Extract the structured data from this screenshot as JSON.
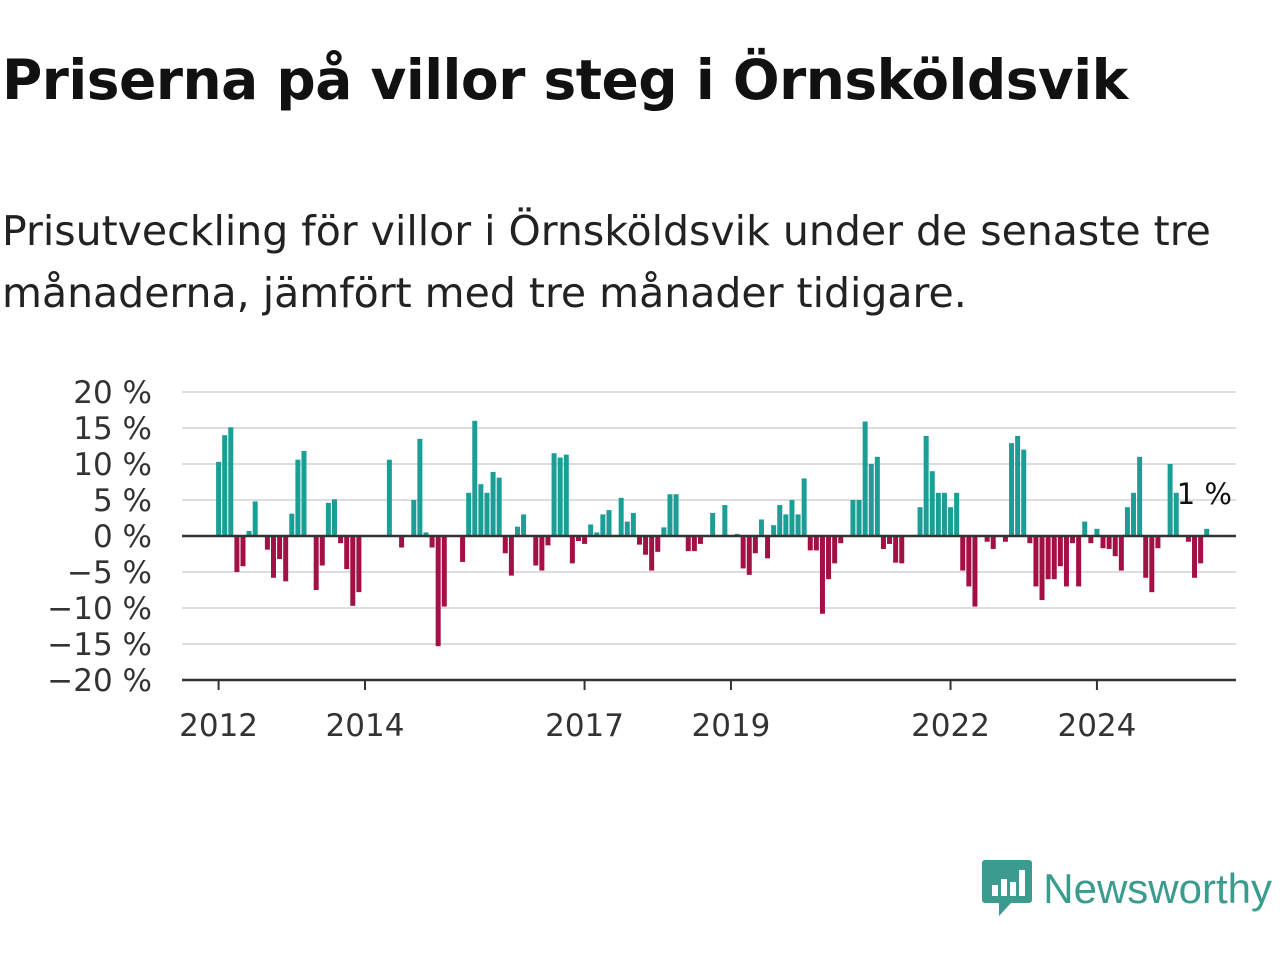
{
  "header": {
    "title": "Priserna på villor steg i Örnsköldsvik",
    "subtitle": "Prisutveckling för villor i Örnsköldsvik under de senaste tre månaderna, jämfört med tre månader tidigare."
  },
  "brand": {
    "name": "Newsworthy",
    "icon": "newsworthy-logo-icon",
    "color": "#3a9b8e"
  },
  "colors": {
    "positive": "#1b9e96",
    "negative": "#a31046",
    "axis": "#333333",
    "grid": "#dddddd"
  },
  "chart_data": {
    "type": "bar",
    "title": "",
    "xlabel": "",
    "ylabel": "",
    "ylim": [
      -20,
      20
    ],
    "y_ticks": [
      20,
      15,
      10,
      5,
      0,
      -5,
      -10,
      -15,
      -20
    ],
    "y_tick_labels": [
      "20 %",
      "15 %",
      "10 %",
      "5 %",
      "0 %",
      "−5 %",
      "−10 %",
      "−15 %",
      "−20 %"
    ],
    "x_tick_labels": [
      {
        "label": "2012",
        "date": "2012-01"
      },
      {
        "label": "2014",
        "date": "2014-01"
      },
      {
        "label": "2017",
        "date": "2017-01"
      },
      {
        "label": "2019",
        "date": "2019-01"
      },
      {
        "label": "2022",
        "date": "2022-01"
      },
      {
        "label": "2024",
        "date": "2024-01"
      }
    ],
    "grid": true,
    "x_start": "2012-01",
    "last_value_label": "1 %",
    "values": [
      10.3,
      14,
      15.1,
      -5,
      -4.2,
      0.7,
      4.8,
      0,
      -1.9,
      -5.8,
      -3.2,
      -6.3,
      3.1,
      10.6,
      11.8,
      0,
      -7.5,
      -4.1,
      4.6,
      5.1,
      -1,
      -4.6,
      -9.7,
      -7.8,
      0,
      0,
      0,
      0,
      10.6,
      0,
      -1.6,
      0,
      5,
      13.5,
      0.5,
      -1.6,
      -15.3,
      -9.8,
      0,
      0,
      -3.6,
      6,
      16,
      7.2,
      6,
      8.9,
      8.1,
      -2.4,
      -5.5,
      1.3,
      3,
      0,
      -4.1,
      -4.8,
      -1.3,
      11.5,
      10.9,
      11.3,
      -3.8,
      -0.7,
      -1.1,
      1.6,
      0.5,
      3,
      3.6,
      0,
      5.3,
      2,
      3.2,
      -1.2,
      -2.6,
      -4.8,
      -2.2,
      1.2,
      5.8,
      5.8,
      0,
      -2.1,
      -2.1,
      -1.1,
      0,
      3.2,
      0,
      4.3,
      0,
      0.3,
      -4.5,
      -5.4,
      -2.4,
      2.3,
      -3.1,
      1.5,
      4.3,
      3,
      5,
      3,
      8,
      -2,
      -2,
      -10.8,
      -6,
      -3.8,
      -1,
      0,
      5,
      5,
      15.9,
      10,
      11,
      -1.8,
      -1.1,
      -3.7,
      -3.8,
      0,
      0,
      4,
      13.9,
      9,
      6,
      6,
      4,
      6,
      -4.8,
      -7,
      -9.8,
      0,
      -0.8,
      -1.8,
      0,
      -0.8,
      12.9,
      13.9,
      12,
      -1,
      -7,
      -8.9,
      -6,
      -6,
      -4.2,
      -7,
      -1,
      -7,
      2,
      -1,
      1,
      -1.7,
      -1.8,
      -2.8,
      -4.8,
      4,
      6,
      11,
      -5.8,
      -7.8,
      -1.7,
      0,
      10,
      6,
      0,
      -0.8,
      -5.8,
      -3.8,
      1
    ]
  }
}
